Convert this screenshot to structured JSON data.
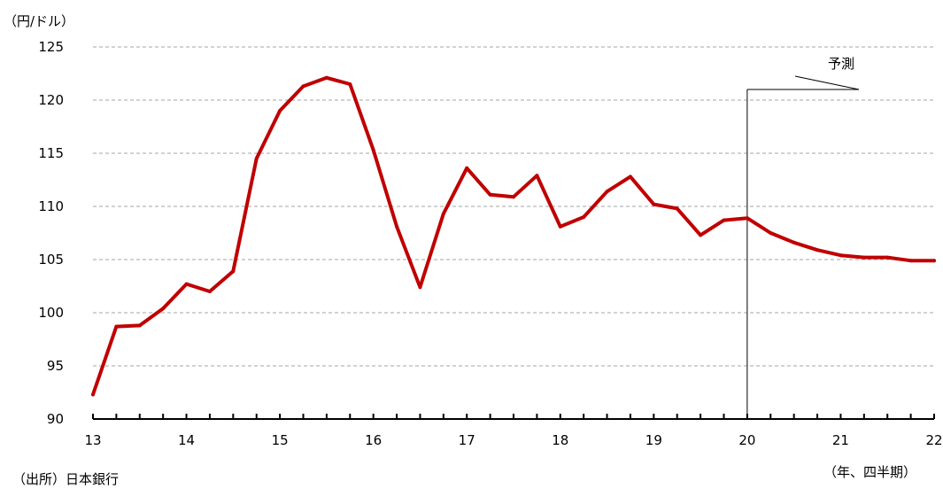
{
  "chart_data": {
    "type": "line",
    "ylabel": "（円/ドル）",
    "xlabel": "（年、四半期）",
    "source": "（出所）日本銀行",
    "ylim": [
      90,
      125
    ],
    "yticks": [
      90,
      95,
      100,
      105,
      110,
      115,
      120,
      125
    ],
    "xlim": [
      13,
      22
    ],
    "xticks": [
      "13",
      "14",
      "15",
      "16",
      "17",
      "18",
      "19",
      "20",
      "21",
      "22"
    ],
    "grid": true,
    "forecast_start": 20.0,
    "forecast_label": "予測",
    "line_color": "#c00000",
    "series": [
      {
        "x": [
          13.0,
          13.25,
          13.5,
          13.75,
          14.0,
          14.25,
          14.5,
          14.75,
          15.0,
          15.25,
          15.5,
          15.75,
          16.0,
          16.25,
          16.5,
          16.75,
          17.0,
          17.25,
          17.5,
          17.75,
          18.0,
          18.25,
          18.5,
          18.75,
          19.0,
          19.25,
          19.5,
          19.75,
          20.0,
          20.25,
          20.5,
          20.75,
          21.0,
          21.25,
          21.5,
          21.75,
          22.0
        ],
        "values": [
          92.3,
          98.7,
          98.8,
          100.4,
          102.7,
          102.0,
          103.9,
          114.5,
          119.0,
          121.3,
          122.1,
          121.5,
          115.3,
          108.1,
          102.4,
          109.3,
          113.6,
          111.1,
          110.9,
          112.9,
          108.1,
          109.0,
          111.4,
          112.8,
          110.2,
          109.8,
          107.3,
          108.7,
          108.9,
          107.5,
          106.6,
          105.9,
          105.4,
          105.2,
          105.2,
          104.9,
          104.9
        ]
      }
    ]
  }
}
